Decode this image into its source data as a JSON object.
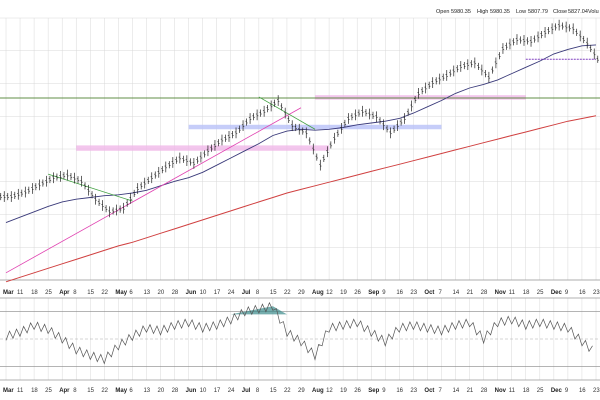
{
  "colors": {
    "background": "#ffffff",
    "grid": "#d8d8d8",
    "price": "#222222",
    "ma_short": "#3a3a7a",
    "ma_long": "#d04040",
    "resistance_line": "#c84040",
    "support_line": "#3a9a3a",
    "trend_pink": "#e040b0",
    "trend_green": "#40a040",
    "band_pink": "#f0b8e8",
    "band_blue": "#b8c0f8",
    "momentum": "#555555",
    "momentum_fill": "#3a8a8a",
    "dashed_purple": "#8040c0"
  },
  "ohlc_header": {
    "open_label": "Open",
    "open_value": "5980.35",
    "high_label": "High",
    "high_value": "5980.35",
    "low_label": "Low",
    "low_value": "5807.79",
    "close_label": "Close",
    "close_value": "5827.04",
    "volume_label": "Volu"
  },
  "chart_data": [
    {
      "type": "line",
      "panel": "price",
      "grid": true,
      "x_ticks": [
        "Mar",
        "11",
        "18",
        "25",
        "Apr",
        "8",
        "15",
        "22",
        "May",
        "6",
        "13",
        "20",
        "28",
        "Jun",
        "10",
        "17",
        "24",
        "Jul",
        "8",
        "15",
        "22",
        "29",
        "Aug",
        "12",
        "19",
        "26",
        "Sep",
        "9",
        "16",
        "23",
        "Oct",
        "7",
        "14",
        "21",
        "28",
        "Nov",
        "11",
        "18",
        "25",
        "Dec",
        "9",
        "16",
        "23"
      ],
      "month_ticks": [
        "Mar",
        "Apr",
        "May",
        "Jun",
        "Jul",
        "Aug",
        "Sep",
        "Oct",
        "Nov",
        "Dec"
      ],
      "x": [
        0,
        1,
        2,
        3,
        4,
        5,
        6,
        7,
        8,
        9,
        10,
        11,
        12,
        13,
        14,
        15,
        16,
        17,
        18,
        19,
        20,
        21,
        22,
        23,
        24,
        25,
        26,
        27,
        28,
        29,
        30,
        31,
        32,
        33,
        34,
        35,
        36,
        37,
        38,
        39,
        40,
        41,
        42
      ],
      "series": [
        {
          "role": "price_bars",
          "values": [
            5125,
            5150,
            5190,
            5230,
            5245,
            5210,
            5110,
            5040,
            5060,
            5170,
            5230,
            5290,
            5340,
            5310,
            5380,
            5440,
            5480,
            5560,
            5600,
            5660,
            5520,
            5480,
            5300,
            5450,
            5560,
            5600,
            5570,
            5480,
            5560,
            5700,
            5760,
            5800,
            5850,
            5870,
            5790,
            5950,
            6000,
            5990,
            6040,
            6080,
            6060,
            5980,
            5860
          ]
        },
        {
          "role": "ma_short",
          "values": [
            4980,
            5010,
            5040,
            5070,
            5095,
            5110,
            5120,
            5130,
            5135,
            5145,
            5160,
            5185,
            5210,
            5230,
            5260,
            5300,
            5340,
            5380,
            5420,
            5465,
            5490,
            5500,
            5495,
            5500,
            5510,
            5525,
            5535,
            5545,
            5560,
            5590,
            5625,
            5660,
            5700,
            5730,
            5750,
            5775,
            5810,
            5845,
            5880,
            5920,
            5945,
            5965,
            5970
          ]
        },
        {
          "role": "ma_long",
          "values": [
            4650,
            4675,
            4700,
            4725,
            4750,
            4775,
            4800,
            4825,
            4850,
            4870,
            4895,
            4920,
            4945,
            4970,
            4995,
            5020,
            5045,
            5070,
            5095,
            5120,
            5145,
            5165,
            5185,
            5205,
            5225,
            5245,
            5265,
            5285,
            5305,
            5325,
            5345,
            5365,
            5385,
            5405,
            5425,
            5445,
            5465,
            5485,
            5505,
            5525,
            5545,
            5560,
            5575
          ]
        }
      ],
      "reference_levels": [
        5670,
        5880
      ],
      "ylim": [
        4660,
        6120
      ]
    },
    {
      "type": "line",
      "panel": "momentum",
      "grid": true,
      "series": [
        {
          "role": "oscillator",
          "values": [
            52,
            55,
            60,
            57,
            50,
            42,
            38,
            35,
            45,
            52,
            58,
            56,
            60,
            62,
            58,
            60,
            64,
            70,
            72,
            74,
            55,
            48,
            38,
            58,
            60,
            62,
            55,
            48,
            58,
            60,
            58,
            56,
            60,
            62,
            50,
            62,
            64,
            60,
            62,
            60,
            58,
            48,
            40
          ]
        }
      ],
      "reference_levels": [
        70,
        50,
        30
      ],
      "ylim": [
        20,
        80
      ]
    }
  ]
}
